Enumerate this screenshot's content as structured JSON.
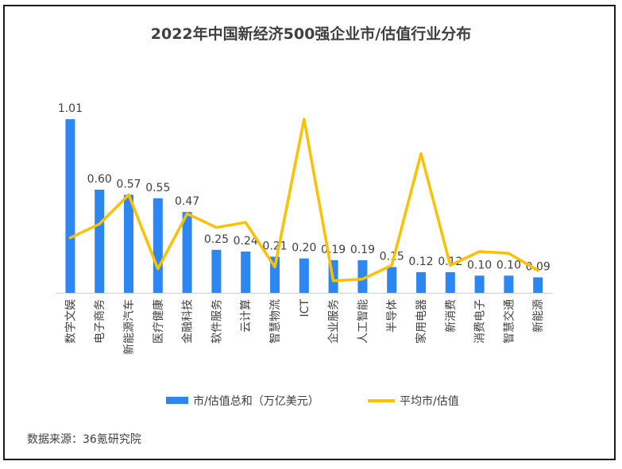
{
  "chart_data": {
    "type": "bar+line",
    "title": "2022年中国新经济500强企业市/估值行业分布",
    "categories": [
      "数字文娱",
      "电子商务",
      "新能源汽车",
      "医疗健康",
      "金融科技",
      "软件服务",
      "云计算",
      "智慧物流",
      "ICT",
      "企业服务",
      "人工智能",
      "半导体",
      "家用电器",
      "新消费",
      "消费电子",
      "智慧交通",
      "新能源"
    ],
    "series": [
      {
        "name": "市/估值总和（万亿美元）",
        "type": "bar",
        "color": "#2E86F0",
        "values": [
          1.01,
          0.6,
          0.57,
          0.55,
          0.47,
          0.25,
          0.24,
          0.21,
          0.2,
          0.19,
          0.19,
          0.15,
          0.12,
          0.12,
          0.1,
          0.1,
          0.09
        ],
        "labels": [
          "1.01",
          "0.60",
          "0.57",
          "0.55",
          "0.47",
          "0.25",
          "0.24",
          "0.21",
          "0.20",
          "0.19",
          "0.19",
          "0.15",
          "0.12",
          "0.12",
          "0.10",
          "0.10",
          "0.09"
        ]
      },
      {
        "name": "平均市/估值",
        "type": "line",
        "color": "#FFC000",
        "values": [
          0.32,
          0.4,
          0.57,
          0.14,
          0.46,
          0.38,
          0.41,
          0.15,
          1.01,
          0.07,
          0.08,
          0.16,
          0.81,
          0.16,
          0.24,
          0.23,
          0.13
        ]
      }
    ],
    "ylim": [
      0,
      1.08
    ],
    "grid": false,
    "legend": "bottom",
    "source": "数据来源：36氪研究院"
  }
}
